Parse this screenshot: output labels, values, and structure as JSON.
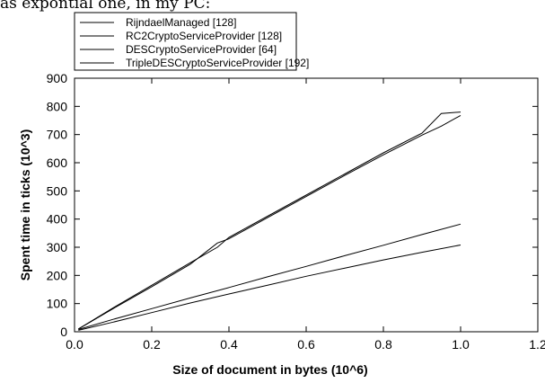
{
  "caption_fragment": "as expontial one, in my PC:",
  "chart_data": {
    "type": "line",
    "xlabel": "Size of document in bytes (10^6)",
    "ylabel": "Spent time in ticks (10^3)",
    "xlim": [
      0.0,
      1.2
    ],
    "ylim": [
      0,
      900
    ],
    "xticks": [
      0.0,
      0.2,
      0.4,
      0.6,
      0.8,
      1.0,
      1.2
    ],
    "xtick_labels": [
      "0.0",
      "0.2",
      "0.4",
      "0.6",
      "0.8",
      "1.0",
      "1.2"
    ],
    "yticks": [
      0,
      100,
      200,
      300,
      400,
      500,
      600,
      700,
      800,
      900
    ],
    "ytick_labels": [
      "0",
      "100",
      "200",
      "300",
      "400",
      "500",
      "600",
      "700",
      "800",
      "900"
    ],
    "legend_position": "top-left-outside",
    "series": [
      {
        "name": "RijndaelManaged [128]",
        "color": "#000000",
        "x": [
          0.01,
          0.1,
          0.2,
          0.3,
          0.4,
          0.5,
          0.6,
          0.7,
          0.8,
          0.9,
          1.0
        ],
        "y": [
          5,
          34,
          68,
          102,
          134,
          165,
          197,
          226,
          255,
          282,
          308
        ]
      },
      {
        "name": "RC2CryptoServiceProvider [128]",
        "color": "#000000",
        "x": [
          0.01,
          0.1,
          0.2,
          0.3,
          0.4,
          0.5,
          0.6,
          0.7,
          0.8,
          0.9,
          1.0
        ],
        "y": [
          8,
          44,
          82,
          120,
          157,
          195,
          232,
          270,
          307,
          345,
          382
        ]
      },
      {
        "name": "DESCryptoServiceProvider [64]",
        "color": "#000000",
        "x": [
          0.01,
          0.1,
          0.2,
          0.3,
          0.37,
          0.4,
          0.5,
          0.6,
          0.7,
          0.8,
          0.9,
          0.95,
          1.0
        ],
        "y": [
          10,
          85,
          165,
          245,
          300,
          335,
          410,
          485,
          560,
          635,
          705,
          775,
          780
        ]
      },
      {
        "name": "TripleDESCryptoServiceProvider [192]",
        "color": "#000000",
        "x": [
          0.01,
          0.1,
          0.2,
          0.3,
          0.37,
          0.4,
          0.5,
          0.6,
          0.7,
          0.8,
          0.9,
          0.95,
          1.0
        ],
        "y": [
          10,
          82,
          160,
          240,
          315,
          330,
          405,
          480,
          555,
          628,
          698,
          730,
          768
        ]
      }
    ]
  }
}
